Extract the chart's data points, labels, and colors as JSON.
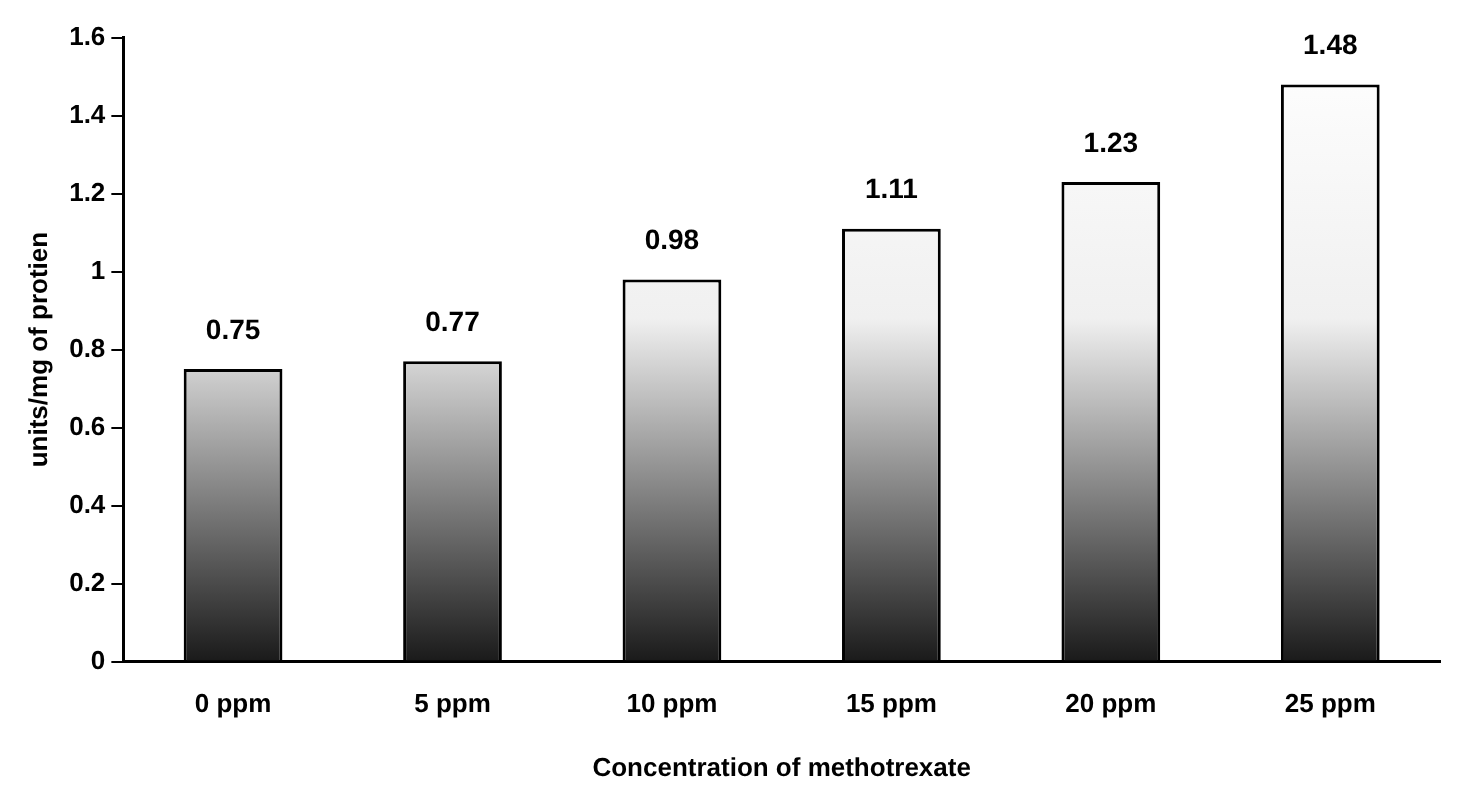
{
  "chart_data": {
    "type": "bar",
    "xlabel": "Concentration of methotrexate",
    "ylabel": "units/mg of protien",
    "categories": [
      "0 ppm",
      "5 ppm",
      "10 ppm",
      "15 ppm",
      "20 ppm",
      "25 ppm"
    ],
    "values": [
      0.75,
      0.77,
      0.98,
      1.11,
      1.23,
      1.48
    ],
    "color": "#1a1a1a",
    "ylim": [
      0,
      1.6
    ],
    "yticks": [
      0,
      0.2,
      0.4,
      0.6,
      0.8,
      1,
      1.2,
      1.4,
      1.6
    ],
    "grid": false,
    "legend": false,
    "data_labels": true
  }
}
